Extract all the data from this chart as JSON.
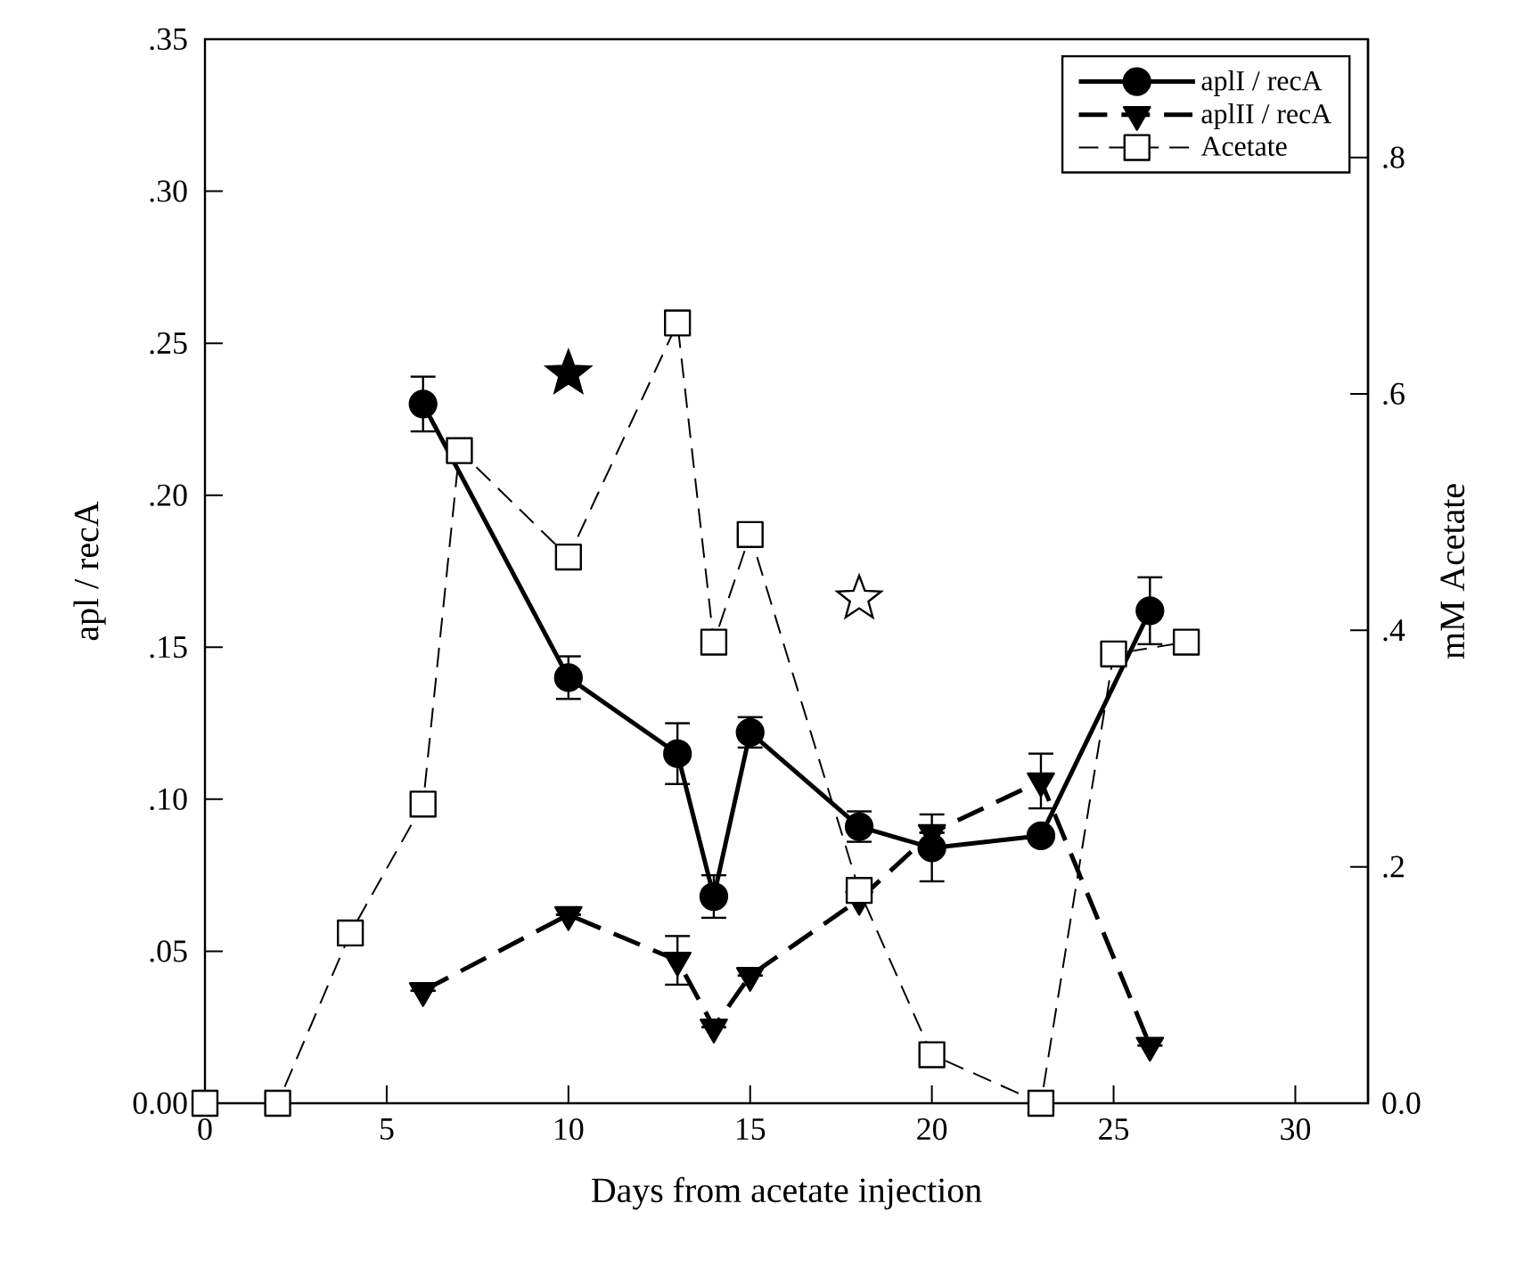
{
  "chart_data": {
    "type": "line",
    "xlabel": "Days from acetate injection",
    "ylabel": "apl / recA",
    "y2label": "mM Acetate",
    "xlim": [
      0,
      32
    ],
    "ylim": [
      0,
      0.35
    ],
    "y2lim": [
      0,
      0.9
    ],
    "xticks": [
      0,
      5,
      10,
      15,
      20,
      25,
      30
    ],
    "yticks": [
      {
        "value": 0,
        "label": "0.00"
      },
      {
        "value": 0.05,
        "label": ".05"
      },
      {
        "value": 0.1,
        "label": ".10"
      },
      {
        "value": 0.15,
        "label": ".15"
      },
      {
        "value": 0.2,
        "label": ".20"
      },
      {
        "value": 0.25,
        "label": ".25"
      },
      {
        "value": 0.3,
        "label": ".30"
      },
      {
        "value": 0.35,
        "label": ".35"
      }
    ],
    "y2ticks": [
      {
        "value": 0,
        "label": "0.0"
      },
      {
        "value": 0.2,
        "label": ".2"
      },
      {
        "value": 0.4,
        "label": ".4"
      },
      {
        "value": 0.6,
        "label": ".6"
      },
      {
        "value": 0.8,
        "label": ".8"
      }
    ],
    "legend": "top right",
    "series": [
      {
        "name": "aplI / recA",
        "color": "#000000",
        "marker": "circle",
        "line_style": "solid",
        "x": [
          6,
          10,
          13,
          14,
          15,
          18,
          20,
          23,
          26
        ],
        "values": [
          0.23,
          0.14,
          0.115,
          0.068,
          0.122,
          0.091,
          0.084,
          0.088,
          0.162
        ],
        "errors": [
          0.009,
          0.007,
          0.01,
          0.007,
          0.005,
          0.005,
          0.011,
          null,
          0.011
        ]
      },
      {
        "name": "aplII / recA",
        "color": "#000000",
        "marker": "triangle",
        "line_style": "dashed",
        "x": [
          6,
          10,
          13,
          14,
          15,
          18,
          20,
          23,
          26
        ],
        "values": [
          0.037,
          0.062,
          0.047,
          0.025,
          0.042,
          0.067,
          0.089,
          0.106,
          0.019
        ],
        "errors": [
          null,
          null,
          0.008,
          null,
          null,
          null,
          null,
          0.009,
          null
        ]
      },
      {
        "name": "Acetate",
        "color": "#000000",
        "marker": "square",
        "line_style": "dashed",
        "axis": "y2",
        "x": [
          0,
          2,
          4,
          6,
          7,
          10,
          13,
          14,
          15,
          18,
          20,
          23,
          25,
          27
        ],
        "values": [
          0,
          0,
          0.144,
          0.253,
          0.552,
          0.462,
          0.66,
          0.39,
          0.481,
          0.18,
          0.041,
          0,
          0.38,
          0.39
        ]
      },
      {
        "type": "scatter",
        "color": "#000000",
        "marker": "star",
        "x": [
          10
        ],
        "values": [
          0.24
        ]
      },
      {
        "type": "scatter",
        "color": "#ffffff",
        "marker": "star",
        "x": [
          18
        ],
        "values": [
          0.166
        ]
      }
    ]
  }
}
